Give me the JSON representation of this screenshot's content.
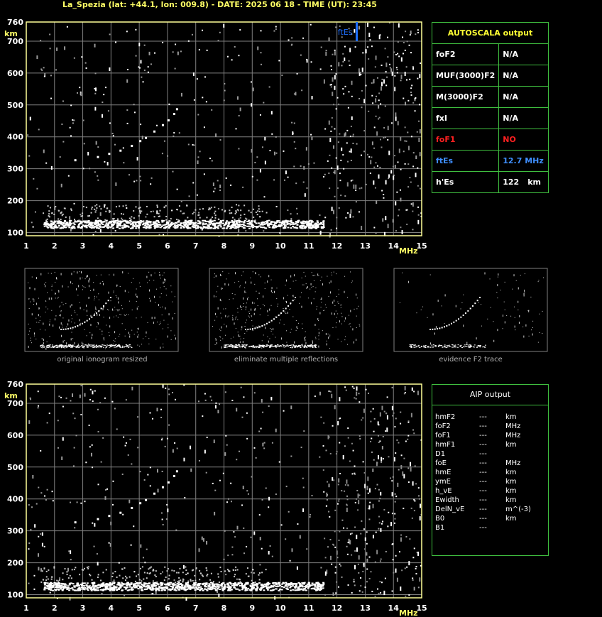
{
  "header": {
    "title": "La_Spezia (lat: +44.1, lon: 009.8) - DATE: 2025 06 18 - TIME (UT): 23:45"
  },
  "colors": {
    "axis": "#ffff99",
    "grid": "#808080",
    "panel_border": "#3fbf3f",
    "label": "#ffff66",
    "es_marker": "#1e6fff",
    "no_value": "#ff2020",
    "es_text": "#3f8fff"
  },
  "autoscala": {
    "title": "AUTOSCALA output",
    "rows": [
      {
        "key": "foF2",
        "value": "N/A",
        "unit": "",
        "color": "#ffffff"
      },
      {
        "key": "MUF(3000)F2",
        "value": "N/A",
        "unit": "",
        "color": "#ffffff"
      },
      {
        "key": "M(3000)F2",
        "value": "N/A",
        "unit": "",
        "color": "#ffffff"
      },
      {
        "key": "fxI",
        "value": "N/A",
        "unit": "",
        "color": "#ffffff"
      },
      {
        "key": "foF1",
        "value": "NO",
        "unit": "",
        "color": "#ff2020"
      },
      {
        "key": "ftEs",
        "value": "12.7 MHz",
        "unit": "",
        "color": "#3f8fff"
      },
      {
        "key": "h'Es",
        "value": "122",
        "unit": "km",
        "color": "#ffffff"
      }
    ]
  },
  "aip": {
    "title": "AIP output",
    "rows": [
      {
        "key": "hmF2",
        "value": "---",
        "unit": "km"
      },
      {
        "key": "foF2",
        "value": "---",
        "unit": "MHz"
      },
      {
        "key": "foF1",
        "value": "---",
        "unit": "MHz"
      },
      {
        "key": "hmF1",
        "value": "---",
        "unit": "km"
      },
      {
        "key": "D1",
        "value": "---",
        "unit": ""
      },
      {
        "key": "foE",
        "value": "---",
        "unit": "MHz"
      },
      {
        "key": "hmE",
        "value": "---",
        "unit": "km"
      },
      {
        "key": "ymE",
        "value": "---",
        "unit": "km"
      },
      {
        "key": "h_vE",
        "value": "---",
        "unit": "km"
      },
      {
        "key": "Ewidth",
        "value": "---",
        "unit": "km"
      },
      {
        "key": "DelN_vE",
        "value": "---",
        "unit": "m^(-3)"
      },
      {
        "key": "B0",
        "value": "---",
        "unit": "km"
      },
      {
        "key": "B1",
        "value": "---",
        "unit": ""
      }
    ]
  },
  "thumbnails": [
    {
      "caption": "original ionogram resized"
    },
    {
      "caption": "eliminate multiple reflections"
    },
    {
      "caption": "evidence F2 trace"
    }
  ],
  "chart_data": [
    {
      "type": "scatter",
      "panel": "top",
      "xlabel": "MHz",
      "ylabel": "km",
      "xlim": [
        1,
        15
      ],
      "ylim": [
        90,
        760
      ],
      "x_ticks": [
        1,
        2,
        3,
        4,
        5,
        6,
        7,
        8,
        9,
        10,
        11,
        12,
        13,
        14,
        15
      ],
      "y_ticks": [
        100,
        200,
        300,
        400,
        500,
        600,
        700,
        760
      ],
      "grid": true,
      "annotation": {
        "text": "ftEs",
        "x": 12.7,
        "y_range": [
          700,
          760
        ]
      },
      "traces": [
        {
          "name": "",
          "x_range": [
            1.6,
            11.5
          ],
          "y_range": [
            115,
            140
          ]
        },
        {
          "name": "",
          "points": [
            [
              2.7,
              330
            ],
            [
              3.5,
              340
            ],
            [
              3.9,
              350
            ],
            [
              4.3,
              360
            ],
            [
              4.7,
              375
            ],
            [
              5.0,
              390
            ],
            [
              5.2,
              400
            ],
            [
              5.5,
              420
            ],
            [
              5.8,
              440
            ],
            [
              6.0,
              455
            ],
            [
              6.2,
              475
            ],
            [
              6.3,
              490
            ]
          ]
        }
      ]
    },
    {
      "type": "scatter",
      "panel": "bottom",
      "xlabel": "MHz",
      "ylabel": "km",
      "xlim": [
        1,
        15
      ],
      "ylim": [
        90,
        760
      ],
      "x_ticks": [
        1,
        2,
        3,
        4,
        5,
        6,
        7,
        8,
        9,
        10,
        11,
        12,
        13,
        14,
        15
      ],
      "y_ticks": [
        100,
        200,
        300,
        400,
        500,
        600,
        700,
        760
      ],
      "grid": true,
      "traces": [
        {
          "name": "",
          "x_range": [
            1.6,
            11.5
          ],
          "y_range": [
            115,
            140
          ]
        },
        {
          "name": "",
          "points": [
            [
              2.7,
              330
            ],
            [
              3.5,
              340
            ],
            [
              3.9,
              350
            ],
            [
              4.3,
              360
            ],
            [
              4.7,
              375
            ],
            [
              5.0,
              390
            ],
            [
              5.2,
              400
            ],
            [
              5.5,
              420
            ],
            [
              5.8,
              440
            ],
            [
              6.0,
              455
            ],
            [
              6.2,
              475
            ],
            [
              6.3,
              490
            ]
          ]
        }
      ]
    }
  ]
}
